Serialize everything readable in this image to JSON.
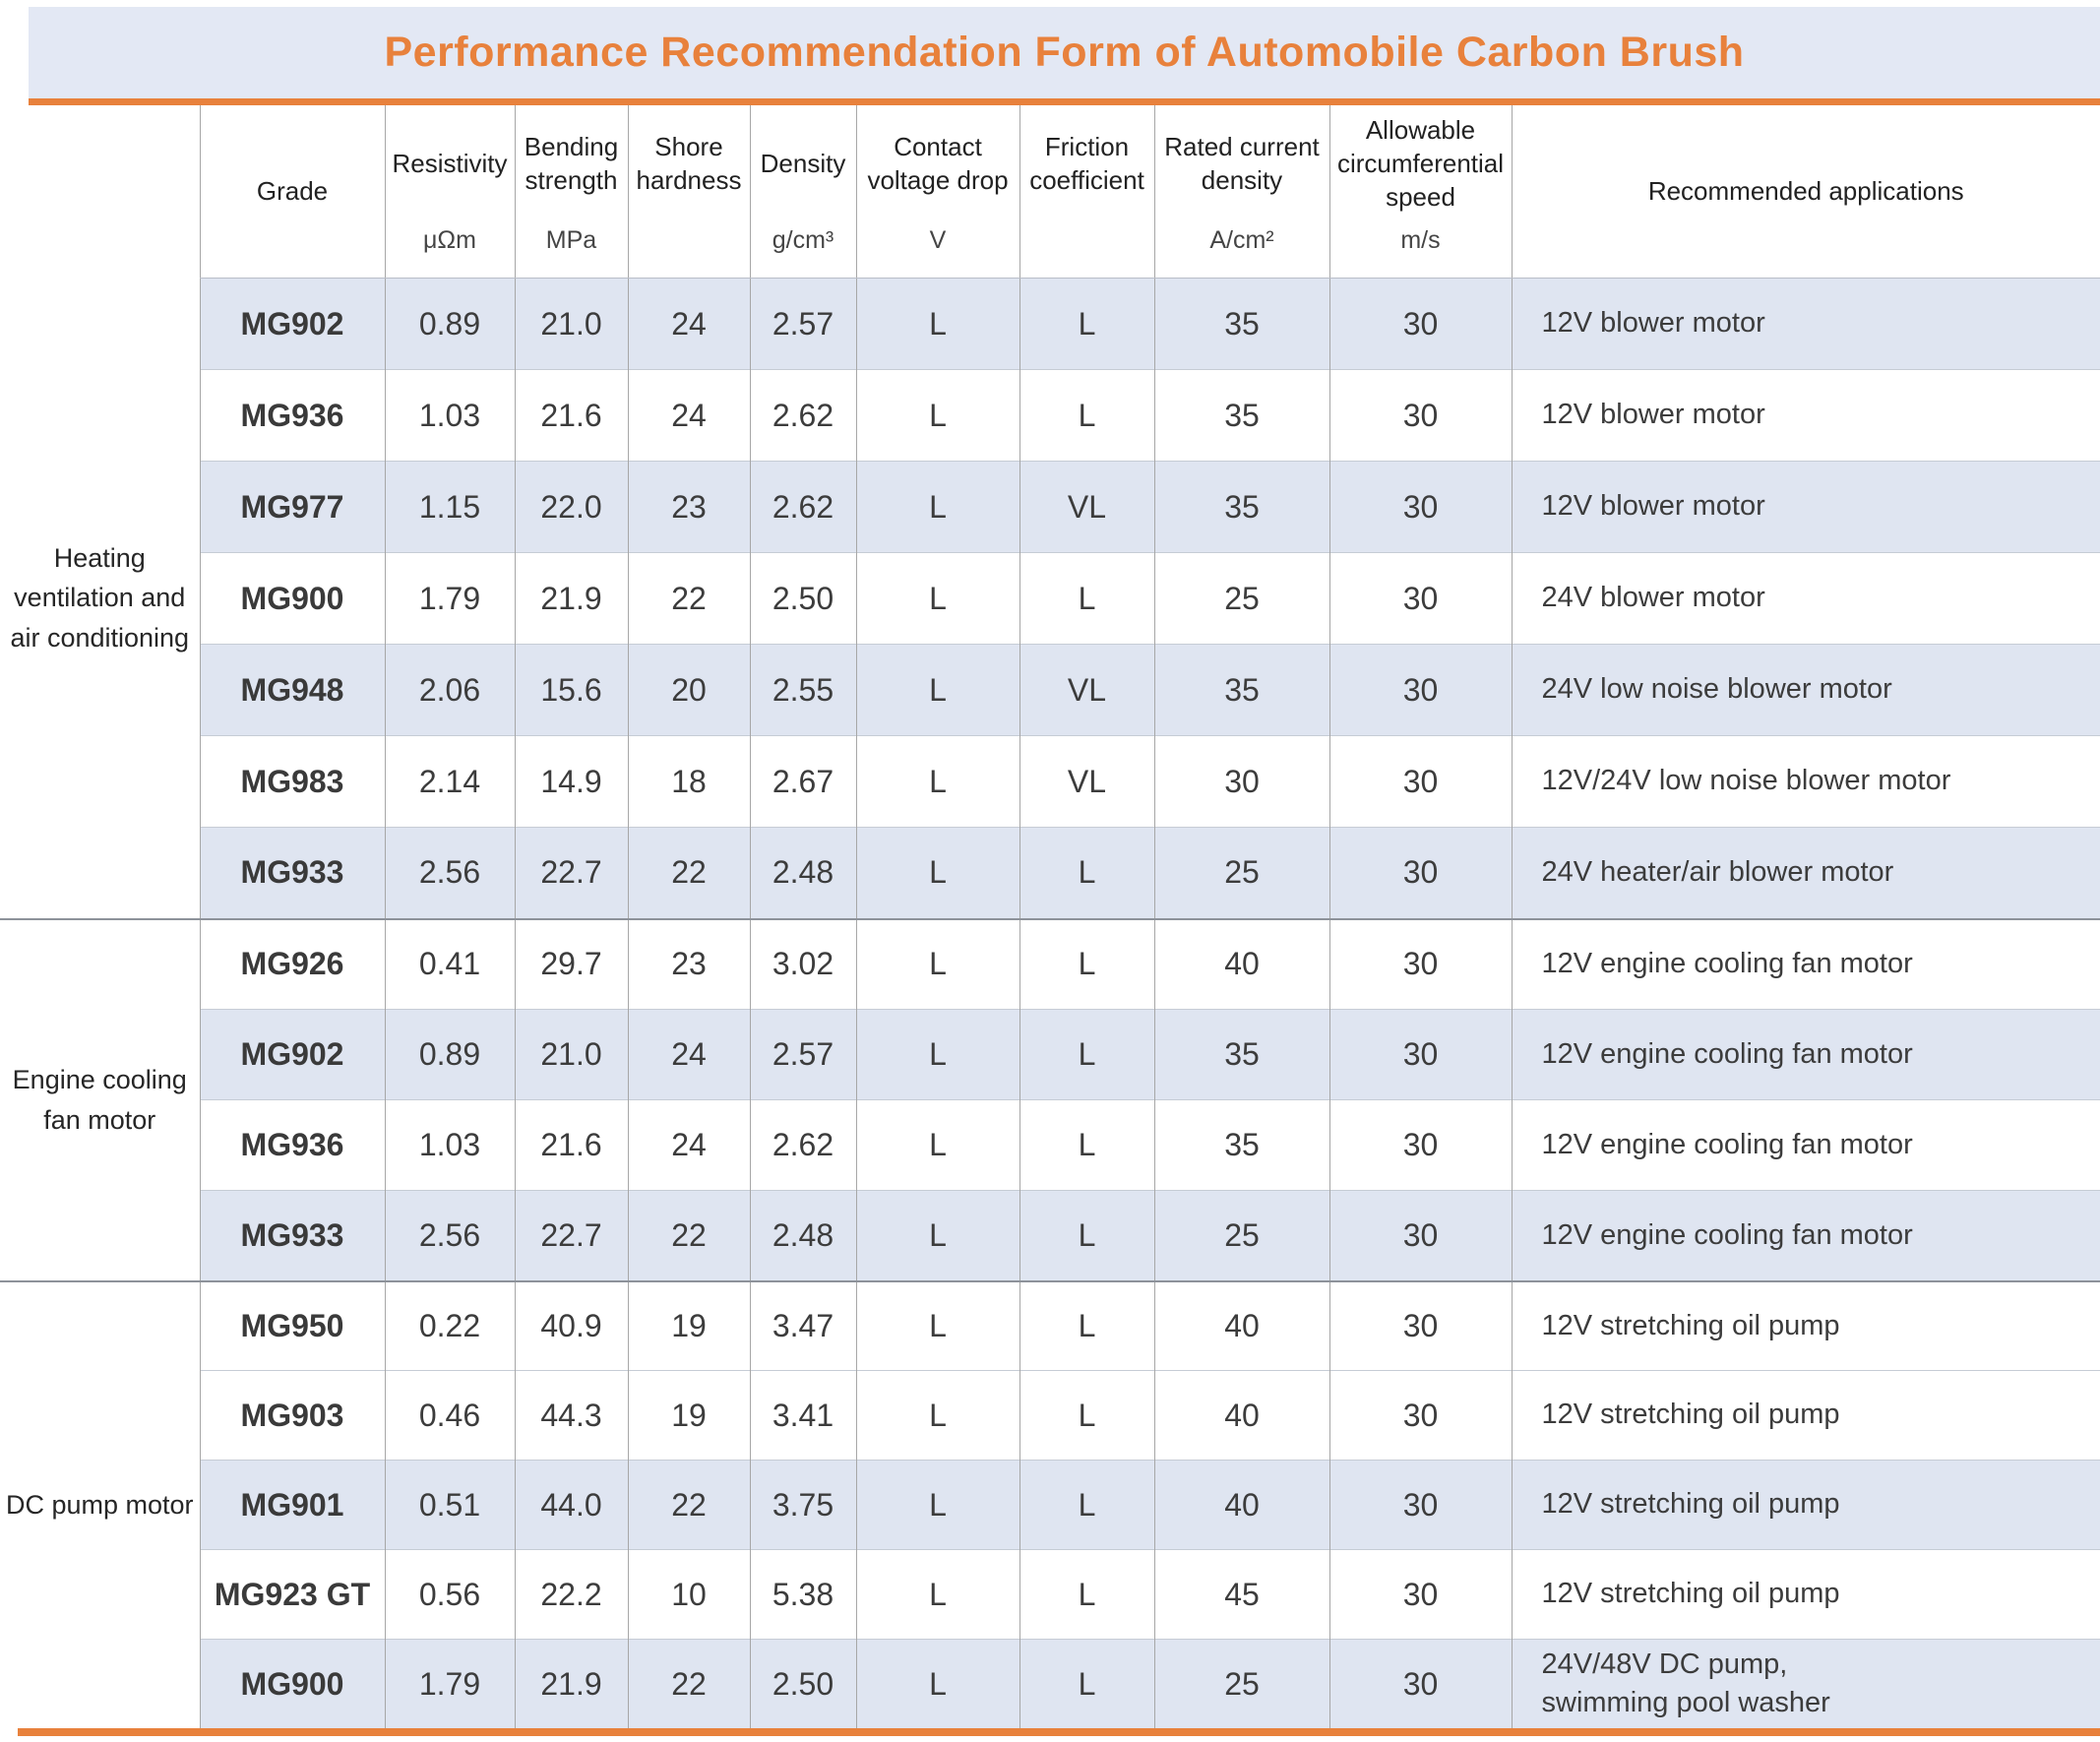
{
  "title": "Performance Recommendation Form of Automobile Carbon Brush",
  "colors": {
    "accent_orange": "#E8813C",
    "title_band_bg": "#E3E8F4",
    "shaded_row_bg": "#DFE5F1"
  },
  "table": {
    "columns": [
      {
        "key": "grade",
        "label": "Grade",
        "unit": ""
      },
      {
        "key": "resistivity",
        "label": "Resistivity",
        "unit": "μΩm"
      },
      {
        "key": "bending_strength",
        "label": "Bending strength",
        "unit": "MPa"
      },
      {
        "key": "shore_hardness",
        "label": "Shore hardness",
        "unit": ""
      },
      {
        "key": "density",
        "label": "Density",
        "unit": "g/cm³"
      },
      {
        "key": "contact_voltage_drop",
        "label": "Contact voltage drop",
        "unit": "V"
      },
      {
        "key": "friction_coefficient",
        "label": "Friction coefficient",
        "unit": ""
      },
      {
        "key": "rated_current_density",
        "label": "Rated current density",
        "unit": "A/cm²"
      },
      {
        "key": "allowable_circumferential_speed",
        "label": "Allowable circumferential speed",
        "unit": "m/s"
      },
      {
        "key": "recommended_applications",
        "label": "Recommended applications",
        "unit": ""
      }
    ],
    "groups": [
      {
        "label": "Heating ventilation and air conditioning",
        "rows": [
          {
            "grade": "MG902",
            "resistivity": "0.89",
            "bending_strength": "21.0",
            "shore_hardness": "24",
            "density": "2.57",
            "contact_voltage_drop": "L",
            "friction_coefficient": "L",
            "rated_current_density": "35",
            "allowable_circumferential_speed": "30",
            "recommended_applications": "12V blower motor",
            "shaded": true
          },
          {
            "grade": "MG936",
            "resistivity": "1.03",
            "bending_strength": "21.6",
            "shore_hardness": "24",
            "density": "2.62",
            "contact_voltage_drop": "L",
            "friction_coefficient": "L",
            "rated_current_density": "35",
            "allowable_circumferential_speed": "30",
            "recommended_applications": "12V blower motor",
            "shaded": false
          },
          {
            "grade": "MG977",
            "resistivity": "1.15",
            "bending_strength": "22.0",
            "shore_hardness": "23",
            "density": "2.62",
            "contact_voltage_drop": "L",
            "friction_coefficient": "VL",
            "rated_current_density": "35",
            "allowable_circumferential_speed": "30",
            "recommended_applications": "12V blower motor",
            "shaded": true
          },
          {
            "grade": "MG900",
            "resistivity": "1.79",
            "bending_strength": "21.9",
            "shore_hardness": "22",
            "density": "2.50",
            "contact_voltage_drop": "L",
            "friction_coefficient": "L",
            "rated_current_density": "25",
            "allowable_circumferential_speed": "30",
            "recommended_applications": "24V blower motor",
            "shaded": false
          },
          {
            "grade": "MG948",
            "resistivity": "2.06",
            "bending_strength": "15.6",
            "shore_hardness": "20",
            "density": "2.55",
            "contact_voltage_drop": "L",
            "friction_coefficient": "VL",
            "rated_current_density": "35",
            "allowable_circumferential_speed": "30",
            "recommended_applications": "24V low noise blower motor",
            "shaded": true
          },
          {
            "grade": "MG983",
            "resistivity": "2.14",
            "bending_strength": "14.9",
            "shore_hardness": "18",
            "density": "2.67",
            "contact_voltage_drop": "L",
            "friction_coefficient": "VL",
            "rated_current_density": "30",
            "allowable_circumferential_speed": "30",
            "recommended_applications": "12V/24V low noise blower motor",
            "shaded": false
          },
          {
            "grade": "MG933",
            "resistivity": "2.56",
            "bending_strength": "22.7",
            "shore_hardness": "22",
            "density": "2.48",
            "contact_voltage_drop": "L",
            "friction_coefficient": "L",
            "rated_current_density": "25",
            "allowable_circumferential_speed": "30",
            "recommended_applications": "24V heater/air blower motor",
            "shaded": true
          }
        ]
      },
      {
        "label": "Engine cooling fan motor",
        "rows": [
          {
            "grade": "MG926",
            "resistivity": "0.41",
            "bending_strength": "29.7",
            "shore_hardness": "23",
            "density": "3.02",
            "contact_voltage_drop": "L",
            "friction_coefficient": "L",
            "rated_current_density": "40",
            "allowable_circumferential_speed": "30",
            "recommended_applications": "12V engine cooling fan motor",
            "shaded": false
          },
          {
            "grade": "MG902",
            "resistivity": "0.89",
            "bending_strength": "21.0",
            "shore_hardness": "24",
            "density": "2.57",
            "contact_voltage_drop": "L",
            "friction_coefficient": "L",
            "rated_current_density": "35",
            "allowable_circumferential_speed": "30",
            "recommended_applications": "12V engine cooling fan motor",
            "shaded": true
          },
          {
            "grade": "MG936",
            "resistivity": "1.03",
            "bending_strength": "21.6",
            "shore_hardness": "24",
            "density": "2.62",
            "contact_voltage_drop": "L",
            "friction_coefficient": "L",
            "rated_current_density": "35",
            "allowable_circumferential_speed": "30",
            "recommended_applications": "12V engine cooling fan motor",
            "shaded": false
          },
          {
            "grade": "MG933",
            "resistivity": "2.56",
            "bending_strength": "22.7",
            "shore_hardness": "22",
            "density": "2.48",
            "contact_voltage_drop": "L",
            "friction_coefficient": "L",
            "rated_current_density": "25",
            "allowable_circumferential_speed": "30",
            "recommended_applications": "12V engine cooling fan motor",
            "shaded": true
          }
        ]
      },
      {
        "label": "DC pump motor",
        "rows": [
          {
            "grade": "MG950",
            "resistivity": "0.22",
            "bending_strength": "40.9",
            "shore_hardness": "19",
            "density": "3.47",
            "contact_voltage_drop": "L",
            "friction_coefficient": "L",
            "rated_current_density": "40",
            "allowable_circumferential_speed": "30",
            "recommended_applications": "12V stretching oil pump",
            "shaded": false
          },
          {
            "grade": "MG903",
            "resistivity": "0.46",
            "bending_strength": "44.3",
            "shore_hardness": "19",
            "density": "3.41",
            "contact_voltage_drop": "L",
            "friction_coefficient": "L",
            "rated_current_density": "40",
            "allowable_circumferential_speed": "30",
            "recommended_applications": "12V stretching oil pump",
            "shaded": false
          },
          {
            "grade": "MG901",
            "resistivity": "0.51",
            "bending_strength": "44.0",
            "shore_hardness": "22",
            "density": "3.75",
            "contact_voltage_drop": "L",
            "friction_coefficient": "L",
            "rated_current_density": "40",
            "allowable_circumferential_speed": "30",
            "recommended_applications": "12V stretching oil pump",
            "shaded": true
          },
          {
            "grade": "MG923 GT",
            "resistivity": "0.56",
            "bending_strength": "22.2",
            "shore_hardness": "10",
            "density": "5.38",
            "contact_voltage_drop": "L",
            "friction_coefficient": "L",
            "rated_current_density": "45",
            "allowable_circumferential_speed": "30",
            "recommended_applications": "12V stretching oil pump",
            "shaded": false
          },
          {
            "grade": "MG900",
            "resistivity": "1.79",
            "bending_strength": "21.9",
            "shore_hardness": "22",
            "density": "2.50",
            "contact_voltage_drop": "L",
            "friction_coefficient": "L",
            "rated_current_density": "25",
            "allowable_circumferential_speed": "30",
            "recommended_applications": "24V/48V DC pump,\nswimming pool washer",
            "shaded": true
          }
        ]
      }
    ]
  }
}
